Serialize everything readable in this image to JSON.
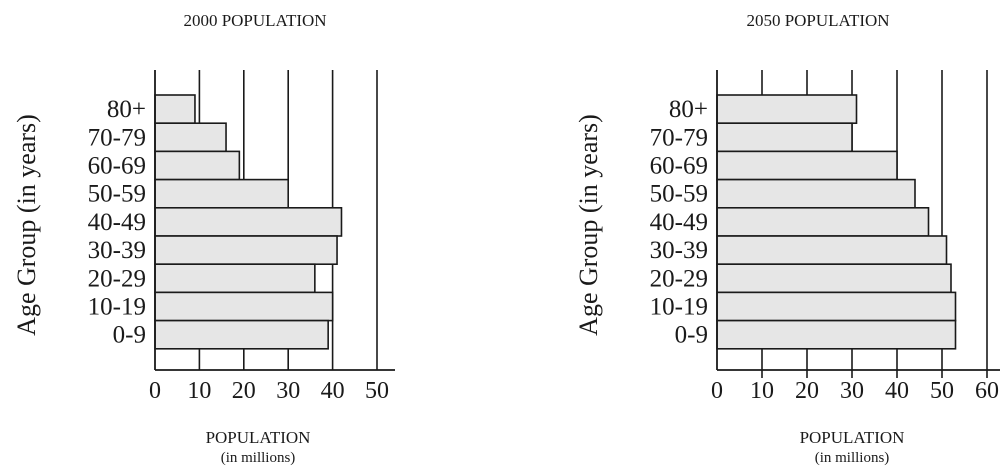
{
  "chart_data": [
    {
      "type": "bar",
      "orientation": "horizontal",
      "title": "2000 POPULATION",
      "ylabel": "Age Group (in years)",
      "xlabel": "POPULATION",
      "xlabel_sub": "(in millions)",
      "xlim": [
        0,
        50
      ],
      "xticks": [
        0,
        10,
        20,
        30,
        40,
        50
      ],
      "grid": "vertical",
      "categories": [
        "80+",
        "70-79",
        "60-69",
        "50-59",
        "40-49",
        "30-39",
        "20-29",
        "10-19",
        "0-9"
      ],
      "values": [
        9,
        16,
        19,
        30,
        42,
        41,
        36,
        40,
        39
      ]
    },
    {
      "type": "bar",
      "orientation": "horizontal",
      "title": "2050 POPULATION",
      "ylabel": "Age Group (in years)",
      "xlabel": "POPULATION",
      "xlabel_sub": "(in millions)",
      "xlim": [
        0,
        60
      ],
      "xticks": [
        0,
        10,
        20,
        30,
        40,
        50,
        60
      ],
      "grid": "vertical",
      "categories": [
        "80+",
        "70-79",
        "60-69",
        "50-59",
        "40-49",
        "30-39",
        "20-29",
        "10-19",
        "0-9"
      ],
      "values": [
        31,
        30,
        40,
        44,
        47,
        51,
        52,
        53,
        53
      ]
    }
  ]
}
